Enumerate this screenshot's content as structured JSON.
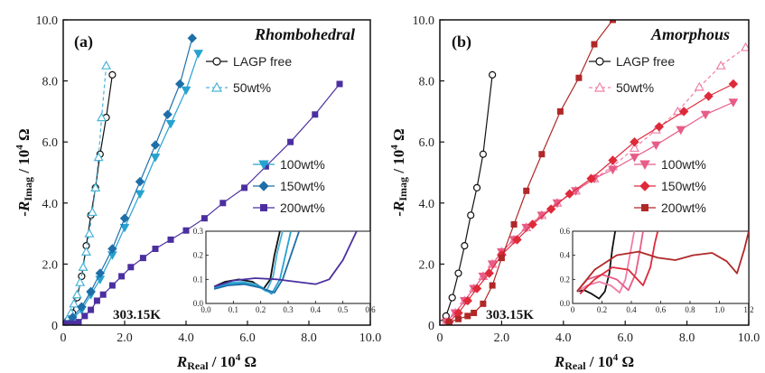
{
  "chart_data": [
    {
      "type": "scatter",
      "panel_label": "(a)",
      "title": "Rhombohedral",
      "xlabel_pre": "R",
      "xlabel_sub": "Real",
      "xlabel_post": " / 10",
      "xlabel_sup": "4",
      "xlabel_unit": " Ω",
      "ylabel_pre": "-R",
      "ylabel_sub": "Imag",
      "ylabel_post": " / 10",
      "ylabel_sup": "4",
      "ylabel_unit": " Ω",
      "xlim": [
        0,
        10
      ],
      "ylim": [
        0,
        10
      ],
      "x_ticks": [
        "0",
        "2.0",
        "4.0",
        "6.0",
        "8.0",
        "10.0"
      ],
      "y_ticks": [
        "0",
        "2.0",
        "4.0",
        "6.0",
        "8.0",
        "10.0"
      ],
      "temperature": "303.15K",
      "grid": false,
      "series": [
        {
          "name": "LAGP free",
          "color": "#111111",
          "marker": "circle-open",
          "dash": false,
          "x": [
            0.05,
            0.15,
            0.3,
            0.45,
            0.6,
            0.75,
            0.9,
            1.05,
            1.2,
            1.4,
            1.6
          ],
          "y": [
            0.05,
            0.15,
            0.4,
            0.9,
            1.6,
            2.6,
            3.6,
            4.5,
            5.6,
            6.8,
            8.2
          ]
        },
        {
          "name": "50wt%",
          "color": "#4ab3d6",
          "marker": "triangle-open",
          "dash": true,
          "x": [
            0.05,
            0.15,
            0.25,
            0.35,
            0.45,
            0.55,
            0.65,
            0.75,
            0.85,
            0.95,
            1.05,
            1.15,
            1.25,
            1.4
          ],
          "y": [
            0.05,
            0.2,
            0.4,
            0.7,
            1.0,
            1.4,
            1.9,
            2.4,
            3.0,
            3.7,
            4.5,
            5.5,
            6.8,
            8.5
          ]
        },
        {
          "name": "100wt%",
          "color": "#27a2d0",
          "marker": "triangle-down",
          "dash": false,
          "x": [
            0.05,
            0.3,
            0.6,
            0.9,
            1.2,
            1.6,
            2.0,
            2.5,
            3.0,
            3.5,
            4.0,
            4.4
          ],
          "y": [
            0.05,
            0.2,
            0.5,
            1.0,
            1.5,
            2.3,
            3.2,
            4.3,
            5.5,
            6.6,
            7.7,
            8.9
          ]
        },
        {
          "name": "150wt%",
          "color": "#1e6fa8",
          "marker": "diamond",
          "dash": false,
          "x": [
            0.05,
            0.3,
            0.6,
            0.9,
            1.2,
            1.6,
            2.0,
            2.5,
            3.0,
            3.4,
            3.8,
            4.2
          ],
          "y": [
            0.05,
            0.25,
            0.6,
            1.1,
            1.7,
            2.5,
            3.5,
            4.7,
            5.9,
            6.9,
            7.9,
            9.4
          ]
        },
        {
          "name": "200wt%",
          "color": "#4b2fa0",
          "marker": "square",
          "dash": false,
          "x": [
            0.1,
            0.3,
            0.5,
            0.7,
            0.9,
            1.1,
            1.3,
            1.6,
            1.9,
            2.2,
            2.6,
            3.0,
            3.5,
            4.0,
            4.6,
            5.2,
            5.9,
            6.6,
            7.4,
            8.2,
            9.0
          ],
          "y": [
            0.05,
            0.05,
            0.1,
            0.3,
            0.5,
            0.8,
            1.0,
            1.3,
            1.6,
            1.9,
            2.2,
            2.5,
            2.8,
            3.1,
            3.5,
            4.0,
            4.5,
            5.2,
            6.0,
            6.9,
            7.9
          ]
        }
      ],
      "inset": {
        "xlim": [
          0,
          0.6
        ],
        "ylim": [
          0,
          0.3
        ],
        "x_ticks": [
          "0.0",
          "0.1",
          "0.2",
          "0.3",
          "0.4",
          "0.5",
          "0.6"
        ],
        "y_ticks": [
          "0.0",
          "0.1",
          "0.2",
          "0.3"
        ],
        "series": [
          {
            "color": "#111111",
            "x": [
              0.03,
              0.07,
              0.12,
              0.17,
              0.21,
              0.235,
              0.25,
              0.27
            ],
            "y": [
              0.07,
              0.09,
              0.1,
              0.09,
              0.06,
              0.1,
              0.2,
              0.3
            ]
          },
          {
            "color": "#4ab3d6",
            "x": [
              0.03,
              0.08,
              0.13,
              0.18,
              0.22,
              0.245,
              0.26,
              0.28
            ],
            "y": [
              0.07,
              0.085,
              0.09,
              0.08,
              0.05,
              0.11,
              0.21,
              0.3
            ]
          },
          {
            "color": "#27a2d0",
            "x": [
              0.03,
              0.08,
              0.14,
              0.2,
              0.24,
              0.27,
              0.29,
              0.31
            ],
            "y": [
              0.065,
              0.08,
              0.085,
              0.07,
              0.04,
              0.1,
              0.2,
              0.3
            ]
          },
          {
            "color": "#1e6fa8",
            "x": [
              0.03,
              0.08,
              0.14,
              0.2,
              0.25,
              0.28,
              0.31,
              0.34
            ],
            "y": [
              0.06,
              0.075,
              0.08,
              0.065,
              0.045,
              0.1,
              0.2,
              0.3
            ]
          },
          {
            "color": "#4b2fa0",
            "x": [
              0.03,
              0.1,
              0.18,
              0.26,
              0.33,
              0.4,
              0.45,
              0.5,
              0.55
            ],
            "y": [
              0.07,
              0.095,
              0.105,
              0.1,
              0.09,
              0.08,
              0.1,
              0.18,
              0.3
            ]
          }
        ]
      }
    },
    {
      "type": "scatter",
      "panel_label": "(b)",
      "title": "Amorphous",
      "xlabel_pre": "R",
      "xlabel_sub": "Real",
      "xlabel_post": " / 10",
      "xlabel_sup": "4",
      "xlabel_unit": " Ω",
      "ylabel_pre": "-R",
      "ylabel_sub": "Imag",
      "ylabel_post": " / 10",
      "ylabel_sup": "4",
      "ylabel_unit": " Ω",
      "xlim": [
        0,
        10
      ],
      "ylim": [
        0,
        10
      ],
      "x_ticks": [
        "0",
        "2.0",
        "4.0",
        "6.0",
        "8.0",
        "10.0"
      ],
      "y_ticks": [
        "0",
        "2.0",
        "4.0",
        "6.0",
        "8.0",
        "10.0"
      ],
      "temperature": "303.15K",
      "grid": false,
      "series": [
        {
          "name": "LAGP free",
          "color": "#111111",
          "marker": "circle-open",
          "dash": false,
          "x": [
            0.05,
            0.2,
            0.4,
            0.6,
            0.8,
            1.0,
            1.2,
            1.4,
            1.7
          ],
          "y": [
            0.05,
            0.3,
            0.9,
            1.7,
            2.6,
            3.6,
            4.5,
            5.6,
            8.2
          ]
        },
        {
          "name": "50wt%",
          "color": "#f07fa8",
          "marker": "triangle-open",
          "dash": true,
          "x": [
            0.2,
            0.5,
            0.8,
            1.1,
            1.4,
            1.7,
            2.0,
            2.4,
            2.8,
            3.3,
            3.8,
            4.4,
            5.0,
            5.6,
            6.3,
            7.0,
            7.7,
            8.4,
            9.1,
            9.9
          ],
          "y": [
            0.1,
            0.4,
            0.8,
            1.2,
            1.6,
            2.0,
            2.4,
            2.8,
            3.2,
            3.6,
            4.0,
            4.4,
            4.8,
            5.2,
            5.8,
            6.4,
            7.0,
            7.8,
            8.5,
            9.1
          ]
        },
        {
          "name": "100wt%",
          "color": "#e85c87",
          "marker": "triangle-down",
          "dash": false,
          "x": [
            0.2,
            0.5,
            0.8,
            1.1,
            1.4,
            1.7,
            2.0,
            2.4,
            2.8,
            3.3,
            3.8,
            4.4,
            5.0,
            5.6,
            6.3,
            7.0,
            7.8,
            8.6,
            9.5
          ],
          "y": [
            0.1,
            0.4,
            0.8,
            1.2,
            1.6,
            2.0,
            2.4,
            2.8,
            3.2,
            3.6,
            4.0,
            4.4,
            4.8,
            5.1,
            5.5,
            5.9,
            6.4,
            6.9,
            7.3
          ]
        },
        {
          "name": "150wt%",
          "color": "#de2a3a",
          "marker": "diamond",
          "dash": false,
          "x": [
            0.3,
            0.6,
            0.9,
            1.2,
            1.6,
            2.0,
            2.5,
            3.0,
            3.6,
            4.2,
            4.9,
            5.6,
            6.3,
            7.1,
            7.9,
            8.7,
            9.5
          ],
          "y": [
            0.1,
            0.4,
            0.8,
            1.2,
            1.7,
            2.3,
            2.8,
            3.3,
            3.8,
            4.3,
            4.8,
            5.4,
            6.0,
            6.5,
            7.0,
            7.5,
            7.9
          ]
        },
        {
          "name": "200wt%",
          "color": "#b02828",
          "marker": "square",
          "dash": false,
          "x": [
            0.3,
            0.6,
            0.9,
            1.1,
            1.4,
            1.7,
            2.0,
            2.4,
            2.8,
            3.3,
            3.9,
            4.5,
            5.0,
            5.6
          ],
          "y": [
            0.1,
            0.2,
            0.3,
            0.4,
            0.7,
            1.3,
            2.2,
            3.3,
            4.4,
            5.6,
            7.0,
            8.1,
            9.2,
            10.0
          ]
        }
      ],
      "inset": {
        "xlim": [
          0,
          1.2
        ],
        "ylim": [
          0,
          0.6
        ],
        "x_ticks": [
          "0",
          "0.2",
          "0.4",
          "0.6",
          "0.8",
          "1.0",
          "1.2"
        ],
        "y_ticks": [
          "0.0",
          "0.2",
          "0.4",
          "0.6"
        ],
        "series": [
          {
            "color": "#111111",
            "x": [
              0.03,
              0.08,
              0.13,
              0.18,
              0.22,
              0.25,
              0.27,
              0.29
            ],
            "y": [
              0.1,
              0.11,
              0.08,
              0.04,
              0.1,
              0.25,
              0.45,
              0.6
            ]
          },
          {
            "color": "#f07fa8",
            "x": [
              0.03,
              0.1,
              0.18,
              0.26,
              0.32,
              0.36,
              0.39,
              0.42
            ],
            "y": [
              0.1,
              0.15,
              0.18,
              0.15,
              0.09,
              0.2,
              0.4,
              0.6
            ]
          },
          {
            "color": "#e85c87",
            "x": [
              0.03,
              0.1,
              0.2,
              0.3,
              0.38,
              0.43,
              0.46,
              0.48
            ],
            "y": [
              0.1,
              0.2,
              0.24,
              0.2,
              0.11,
              0.25,
              0.45,
              0.6
            ]
          },
          {
            "color": "#de2a3a",
            "x": [
              0.05,
              0.15,
              0.27,
              0.38,
              0.48,
              0.53,
              0.56,
              0.58
            ],
            "y": [
              0.08,
              0.2,
              0.3,
              0.28,
              0.15,
              0.3,
              0.5,
              0.6
            ]
          },
          {
            "color": "#b02828",
            "x": [
              0.03,
              0.15,
              0.3,
              0.45,
              0.58,
              0.7,
              0.82,
              0.95,
              1.05,
              1.12,
              1.17,
              1.2
            ],
            "y": [
              0.1,
              0.28,
              0.4,
              0.43,
              0.38,
              0.36,
              0.4,
              0.42,
              0.35,
              0.25,
              0.45,
              0.6
            ]
          }
        ]
      }
    }
  ]
}
